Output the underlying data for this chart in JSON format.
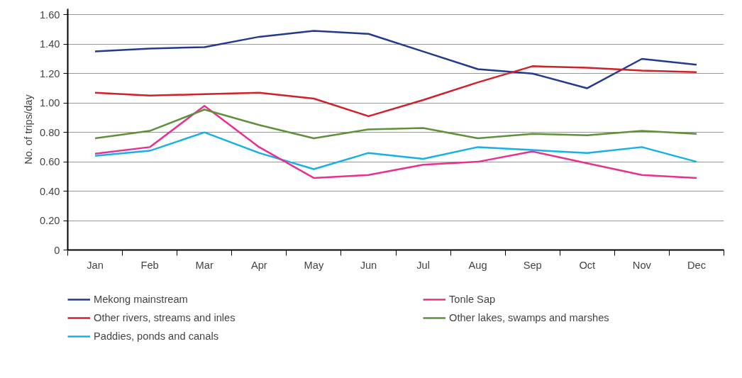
{
  "chart_data": {
    "type": "line",
    "ylabel": "No. of trips/day",
    "categories": [
      "Jan",
      "Feb",
      "Mar",
      "Apr",
      "May",
      "Jun",
      "Jul",
      "Aug",
      "Sep",
      "Oct",
      "Nov",
      "Dec"
    ],
    "series": [
      {
        "name": "Mekong mainstream",
        "color": "#233a8e",
        "values": [
          1.35,
          1.37,
          1.38,
          1.45,
          1.49,
          1.47,
          1.35,
          1.23,
          1.2,
          1.1,
          1.3,
          1.26
        ]
      },
      {
        "name": "Other rivers, streams and inles",
        "color": "#d12027",
        "values": [
          1.07,
          1.05,
          1.06,
          1.07,
          1.03,
          0.91,
          1.02,
          1.14,
          1.25,
          1.24,
          1.22,
          1.21
        ]
      },
      {
        "name": "Paddies, ponds and canals",
        "color": "#14b1e7",
        "values": [
          0.64,
          0.675,
          0.8,
          0.66,
          0.55,
          0.66,
          0.62,
          0.7,
          0.68,
          0.66,
          0.7,
          0.6
        ]
      },
      {
        "name": "Tonle Sap",
        "color": "#e8308f",
        "values": [
          0.655,
          0.7,
          0.98,
          0.7,
          0.49,
          0.51,
          0.58,
          0.6,
          0.67,
          0.59,
          0.51,
          0.49
        ]
      },
      {
        "name": "Other lakes, swamps and marshes",
        "color": "#5e9139",
        "values": [
          0.76,
          0.81,
          0.955,
          0.85,
          0.76,
          0.82,
          0.83,
          0.76,
          0.79,
          0.78,
          0.81,
          0.79
        ]
      }
    ],
    "ylim": [
      0,
      1.64
    ],
    "yticks": [
      0,
      {
        "value": 0.2,
        "label": "0.20"
      },
      {
        "value": 0.4,
        "label": "0.40"
      },
      {
        "value": 0.6,
        "label": "0.60"
      },
      {
        "value": 0.8,
        "label": "0.80"
      },
      {
        "value": 1.0,
        "label": "1.00"
      },
      {
        "value": 1.2,
        "label": "1.20"
      },
      {
        "value": 1.4,
        "label": "1.40"
      },
      {
        "value": 1.6,
        "label": "1.60"
      }
    ],
    "grid": "y",
    "legend": "bottom",
    "line_style": "solid",
    "marker": "none"
  }
}
